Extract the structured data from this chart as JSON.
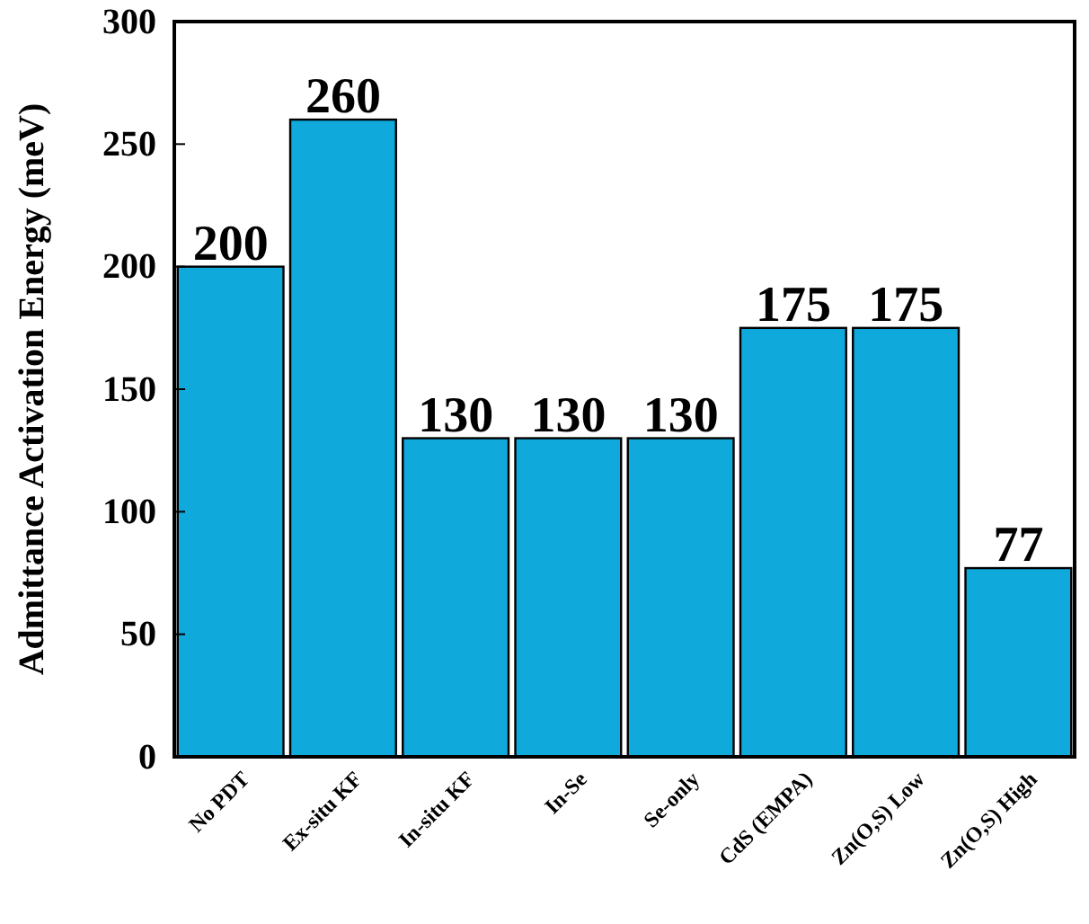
{
  "chart_data": {
    "type": "bar",
    "ylabel": "Admittance Activation Energy (meV)",
    "categories": [
      "No PDT",
      "Ex-situ KF",
      "In-situ KF",
      "In-Se",
      "Se-only",
      "CdS (EMPA)",
      "Zn(O,S) Low",
      "Zn(O,S) High"
    ],
    "values": [
      200,
      260,
      130,
      130,
      130,
      175,
      175,
      77
    ],
    "color": "#10a9dc",
    "ylim": [
      0,
      300
    ],
    "yticks": [
      0,
      50,
      100,
      150,
      200,
      250,
      300
    ],
    "data_labels": true
  }
}
